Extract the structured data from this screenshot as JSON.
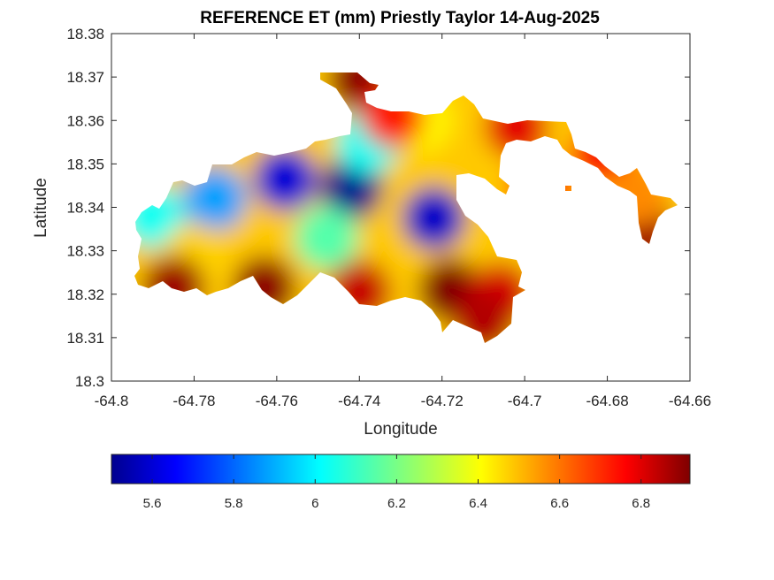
{
  "chart_data": {
    "type": "heatmap",
    "title": "REFERENCE ET (mm) Priestly Taylor 14-Aug-2025",
    "xlabel": "Longitude",
    "ylabel": "Latitude",
    "xlim": [
      -64.8,
      -64.66
    ],
    "ylim": [
      18.3,
      18.38
    ],
    "x_ticks": [
      "-64.8",
      "-64.78",
      "-64.76",
      "-64.74",
      "-64.72",
      "-64.7",
      "-64.68",
      "-64.66"
    ],
    "y_ticks": [
      "18.38",
      "18.37",
      "18.36",
      "18.35",
      "18.34",
      "18.33",
      "18.32",
      "18.31",
      "18.3"
    ],
    "colormap": "jet",
    "color_range": [
      5.5,
      6.92
    ],
    "colorbar_ticks": [
      "5.6",
      "5.8",
      "6",
      "6.2",
      "6.4",
      "6.6",
      "6.8"
    ],
    "colorbar_placement": "bottom",
    "grid": false,
    "regional_values": [
      {
        "lon": -64.742,
        "lat": 18.3445,
        "value": 5.52
      },
      {
        "lon": -64.758,
        "lat": 18.3465,
        "value": 5.62
      },
      {
        "lon": -64.722,
        "lat": 18.3375,
        "value": 5.6
      },
      {
        "lon": -64.775,
        "lat": 18.342,
        "value": 5.9
      },
      {
        "lon": -64.79,
        "lat": 18.338,
        "value": 6.05
      },
      {
        "lon": -64.738,
        "lat": 18.355,
        "value": 6.05
      },
      {
        "lon": -64.748,
        "lat": 18.333,
        "value": 6.15
      },
      {
        "lon": -64.725,
        "lat": 18.36,
        "value": 6.4
      },
      {
        "lon": -64.78,
        "lat": 18.329,
        "value": 6.45
      },
      {
        "lon": -64.74,
        "lat": 18.3695,
        "value": 6.9
      },
      {
        "lon": -64.732,
        "lat": 18.361,
        "value": 6.7
      },
      {
        "lon": -64.785,
        "lat": 18.3215,
        "value": 6.88
      },
      {
        "lon": -64.763,
        "lat": 18.3215,
        "value": 6.9
      },
      {
        "lon": -64.74,
        "lat": 18.3205,
        "value": 6.82
      },
      {
        "lon": -64.718,
        "lat": 18.321,
        "value": 6.92
      },
      {
        "lon": -64.706,
        "lat": 18.32,
        "value": 6.8
      },
      {
        "lon": -64.71,
        "lat": 18.3135,
        "value": 6.85
      },
      {
        "lon": -64.702,
        "lat": 18.3585,
        "value": 6.78
      },
      {
        "lon": -64.681,
        "lat": 18.3525,
        "value": 6.75
      },
      {
        "lon": -64.671,
        "lat": 18.334,
        "value": 6.88
      },
      {
        "lon": -64.673,
        "lat": 18.343,
        "value": 6.55
      },
      {
        "lon": -64.696,
        "lat": 18.3445,
        "value": 6.72
      }
    ]
  }
}
